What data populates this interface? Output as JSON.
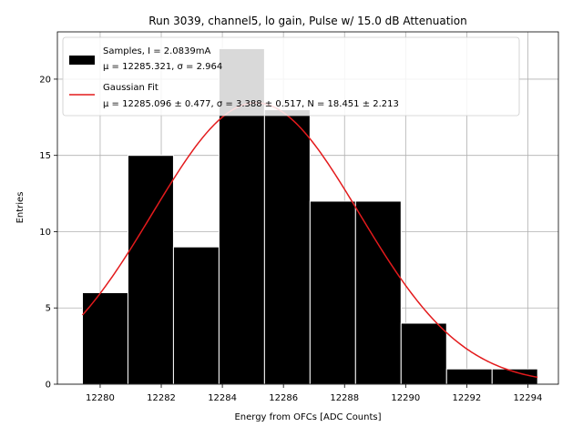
{
  "chart_data": {
    "type": "bar",
    "title": "Run 3039, channel5, lo gain, Pulse w/ 15.0 dB Attenuation",
    "xlabel": "Energy from OFCs [ADC Counts]",
    "ylabel": "Entries",
    "xlim": [
      12278.6,
      12295.0
    ],
    "ylim": [
      0,
      23.1
    ],
    "xticks": [
      12280,
      12282,
      12284,
      12286,
      12288,
      12290,
      12292,
      12294
    ],
    "yticks": [
      0,
      5,
      10,
      15,
      20
    ],
    "grid": true,
    "legend_position": "top-left",
    "histogram": {
      "name": "Samples, I = 2.0839mA",
      "stats": "μ = 12285.321, σ = 2.964",
      "bin_edges": [
        12279.42,
        12280.91,
        12282.4,
        12283.89,
        12285.38,
        12286.87,
        12288.36,
        12289.85,
        12291.34,
        12292.83,
        12294.32
      ],
      "counts": [
        6,
        15,
        9,
        22,
        18,
        12,
        12,
        4,
        1,
        1
      ],
      "color": "#000000"
    },
    "fit": {
      "name": "Gaussian Fit",
      "params": "μ = 12285.096 ± 0.477, σ = 3.388 ± 0.517, N = 18.451 ± 2.213",
      "mu": 12285.096,
      "sigma": 3.388,
      "amplitude": 18.451,
      "x_range": [
        12279.42,
        12294.32
      ],
      "color": "#e31a1c"
    }
  }
}
